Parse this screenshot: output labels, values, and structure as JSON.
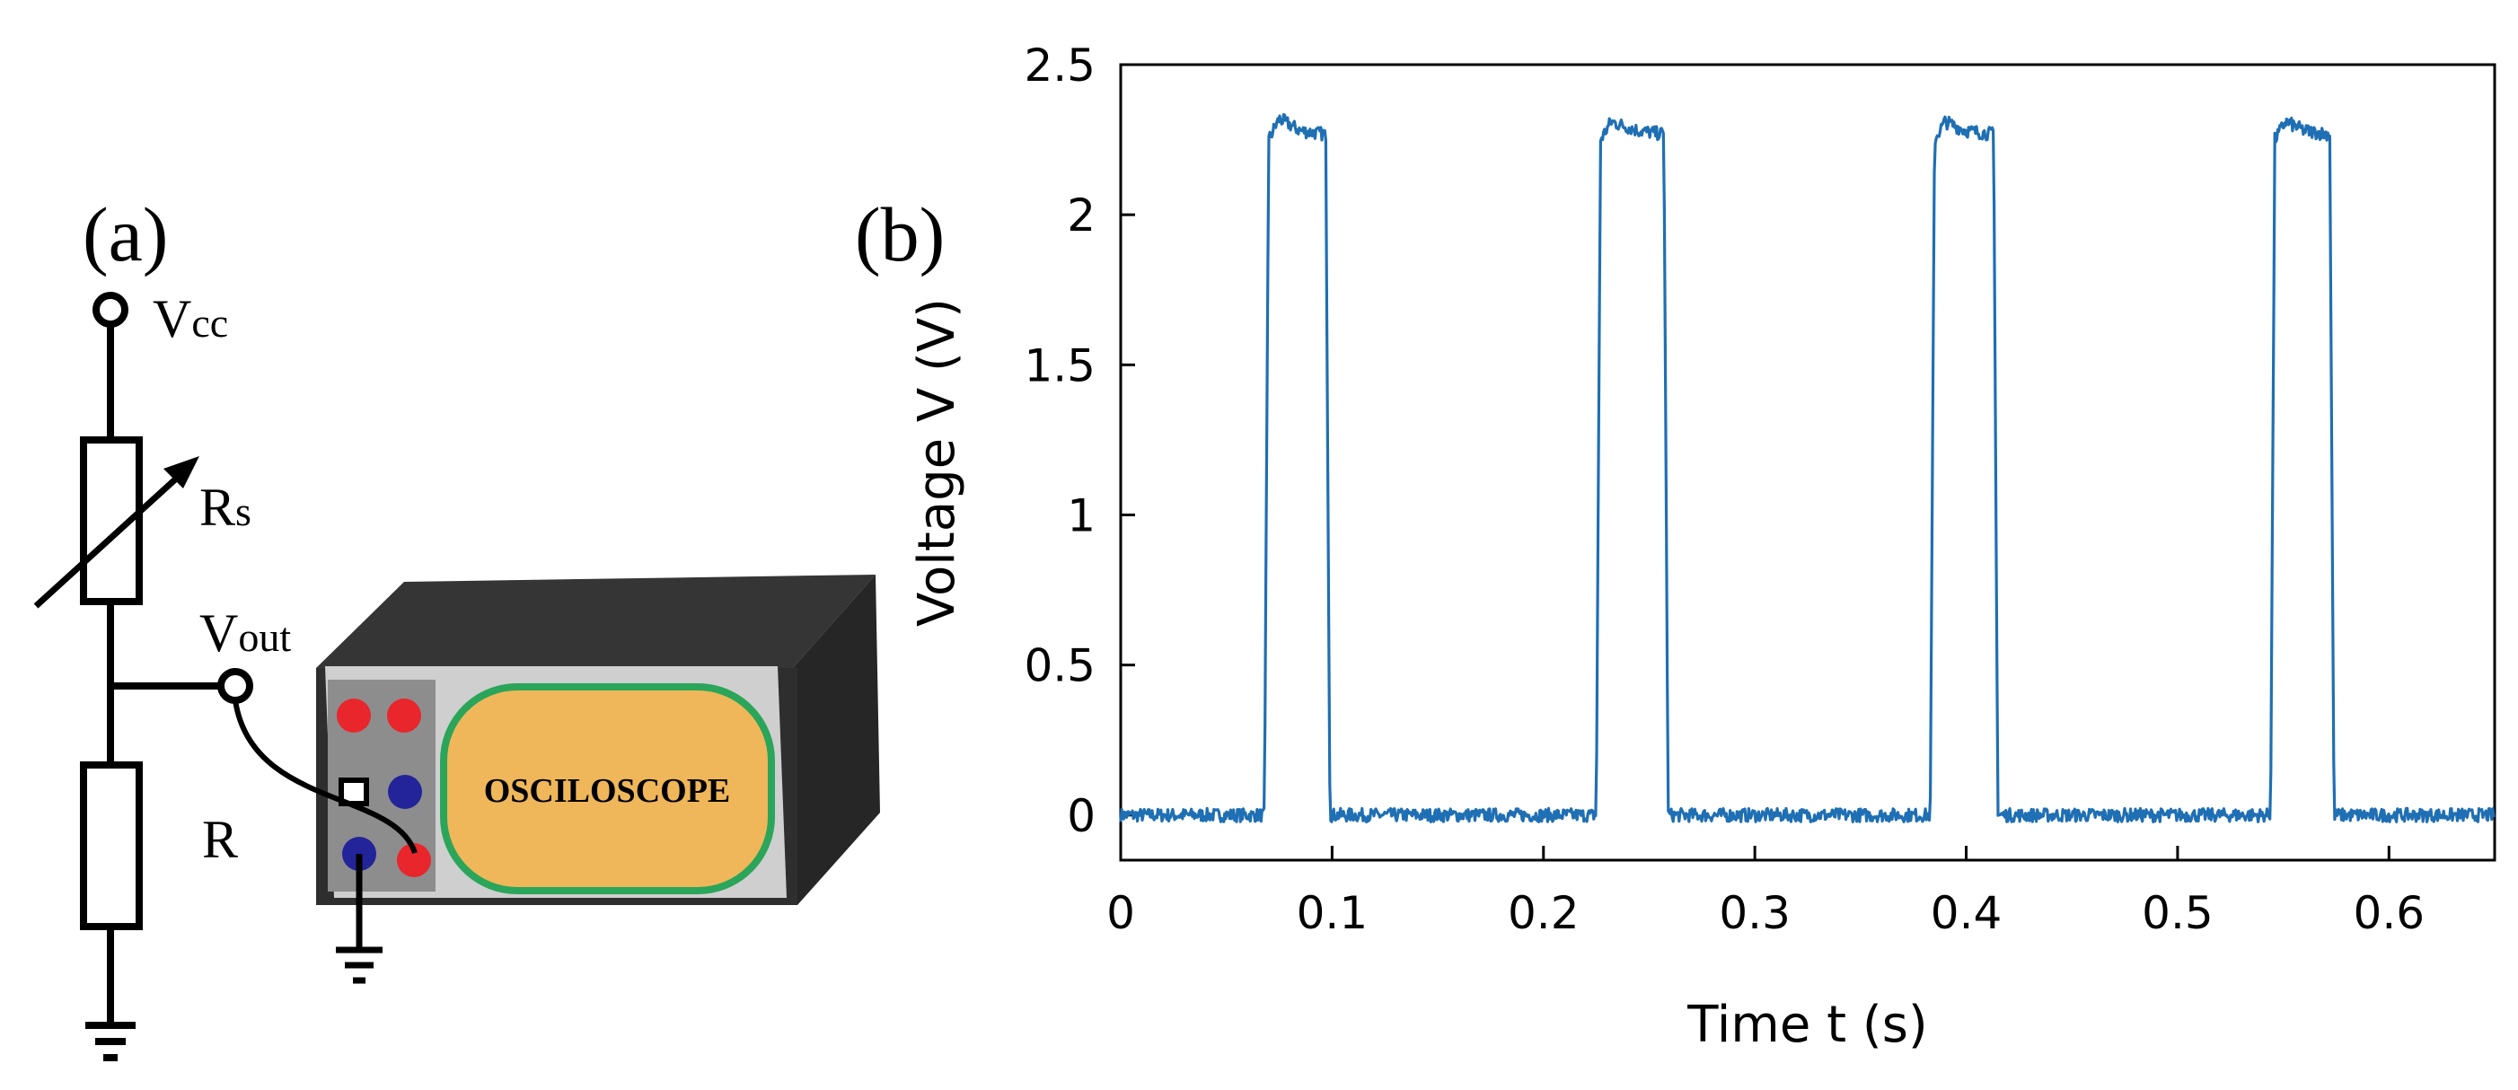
{
  "panel_a": {
    "label": "(a)",
    "vcc_main": "V",
    "vcc_sub": "cc",
    "rs_main": "R",
    "rs_sub": "s",
    "vout_main": "V",
    "vout_sub": "out",
    "r_label": "R",
    "oscilloscope_label": "OSCILOSCOPE"
  },
  "panel_b": {
    "label": "(b)"
  },
  "colors": {
    "trace": "#1f6fb4",
    "device_body": "#2b2b2b",
    "device_panel": "#d0d0d0",
    "jack_panel": "#8c8c8c",
    "screen_fill": "#efb75a",
    "screen_border": "#2aa55a",
    "jack_red": "#e8262c",
    "jack_blue": "#23239a"
  },
  "chart_data": {
    "type": "line",
    "title": "",
    "xlabel": "Time t (s)",
    "ylabel": "Voltage V (V)",
    "xlim": [
      0,
      0.65
    ],
    "ylim": [
      -0.15,
      2.5
    ],
    "xticks": [
      0,
      0.1,
      0.2,
      0.3,
      0.4,
      0.5,
      0.6
    ],
    "xtick_labels": [
      "0",
      "0.1",
      "0.2",
      "0.3",
      "0.4",
      "0.5",
      "0.6"
    ],
    "yticks": [
      0,
      0.5,
      1,
      1.5,
      2,
      2.5
    ],
    "ytick_labels": [
      "0",
      "0.5",
      "1",
      "1.5",
      "2",
      "2.5"
    ],
    "grid": false,
    "series": [
      {
        "x": [
          0,
          0.068,
          0.07,
          0.075,
          0.085,
          0.095,
          0.097,
          0.099,
          0.1,
          0.225,
          0.227,
          0.232,
          0.245,
          0.255,
          0.257,
          0.259,
          0.26,
          0.383,
          0.385,
          0.39,
          0.4,
          0.411,
          0.413,
          0.415,
          0.416,
          0.544,
          0.546,
          0.551,
          0.56,
          0.57,
          0.572,
          0.574,
          0.575,
          0.65
        ],
        "y": [
          0,
          0,
          2.25,
          2.32,
          2.28,
          2.27,
          2.27,
          0,
          0,
          0,
          2.25,
          2.31,
          2.28,
          2.27,
          2.27,
          0,
          0,
          0,
          2.25,
          2.31,
          2.28,
          2.27,
          2.27,
          0,
          0,
          0,
          2.25,
          2.31,
          2.28,
          2.27,
          2.27,
          0,
          0,
          0
        ]
      }
    ]
  }
}
